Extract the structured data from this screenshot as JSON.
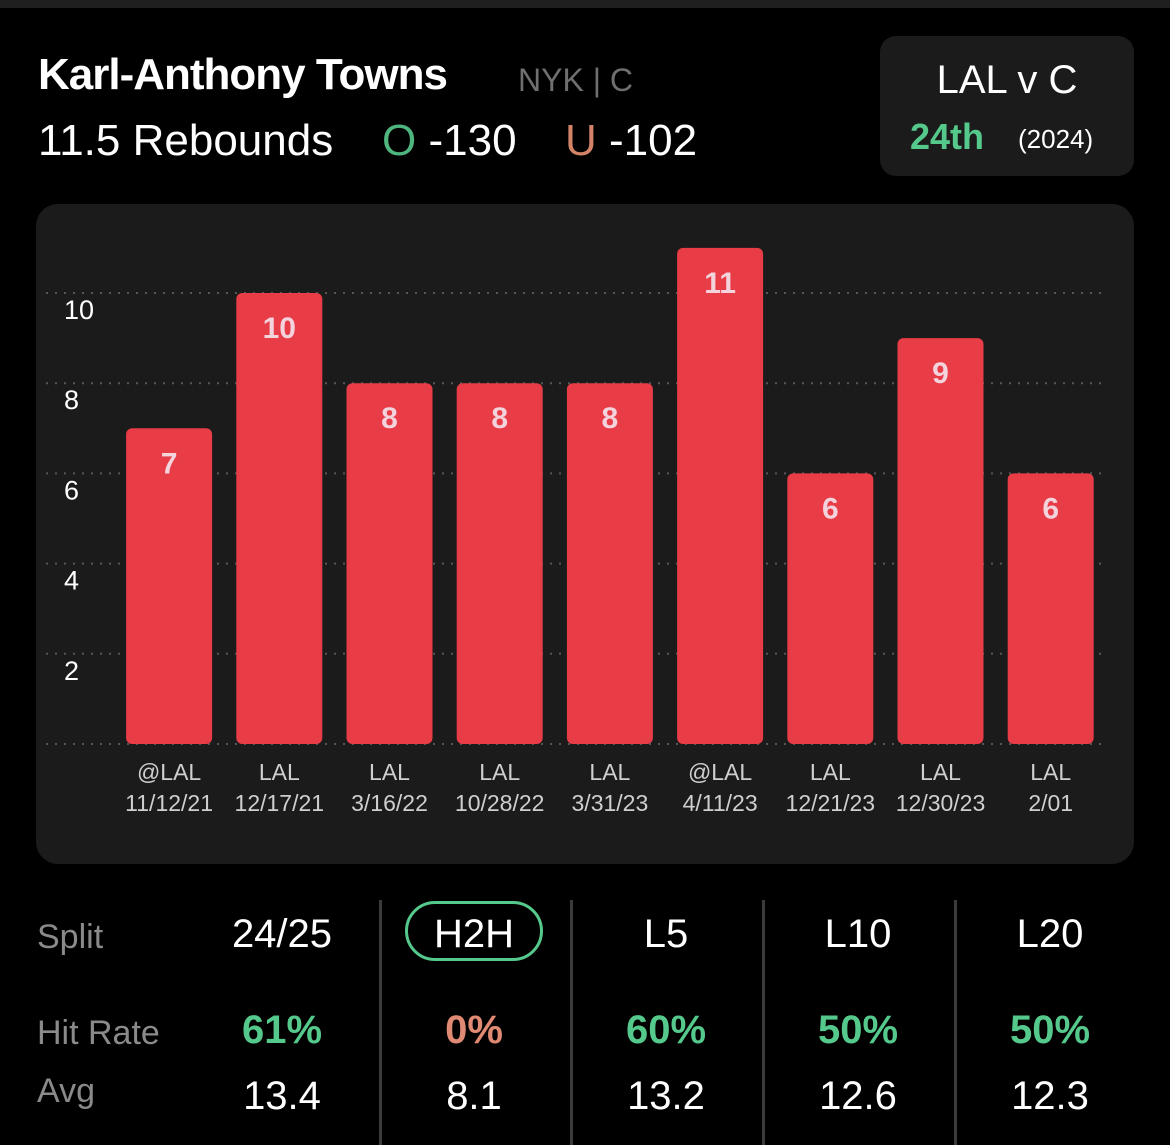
{
  "header": {
    "player_name": "Karl-Anthony Towns",
    "team_pos": "NYK | C",
    "prop_line": "11.5 Rebounds",
    "over_letter": "O",
    "over_odds": "-130",
    "under_letter": "U",
    "under_odds": "-102"
  },
  "matchup": {
    "title": "LAL v C",
    "rank": "24th",
    "year": "(2024)"
  },
  "chart_data": {
    "type": "bar",
    "categories": [
      "@LAL\n11/12/21",
      "LAL\n12/17/21",
      "LAL\n3/16/22",
      "LAL\n10/28/22",
      "LAL\n3/31/23",
      "@LAL\n4/11/23",
      "LAL\n12/21/23",
      "LAL\n12/30/23",
      "LAL\n2/01"
    ],
    "values": [
      7,
      10,
      8,
      8,
      8,
      11,
      6,
      9,
      6
    ],
    "yticks": [
      2,
      4,
      6,
      8,
      10
    ],
    "ylim": [
      0,
      11
    ],
    "grid": true,
    "bar_color": "#e83d47",
    "label_color": "#f3d3dc"
  },
  "stats": {
    "split_label": "Split",
    "hit_rate_label": "Hit Rate",
    "avg_label": "Avg",
    "columns": [
      {
        "head": "24/25",
        "hit": "61%",
        "avg": "13.4",
        "hit_color": "#55c98b"
      },
      {
        "head": "H2H",
        "hit": "0%",
        "avg": "8.1",
        "hit_color": "#e08a73"
      },
      {
        "head": "L5",
        "hit": "60%",
        "avg": "13.2",
        "hit_color": "#55c98b"
      },
      {
        "head": "L10",
        "hit": "50%",
        "avg": "12.6",
        "hit_color": "#55c98b"
      },
      {
        "head": "L20",
        "hit": "50%",
        "avg": "12.3",
        "hit_color": "#55c98b"
      }
    ]
  }
}
